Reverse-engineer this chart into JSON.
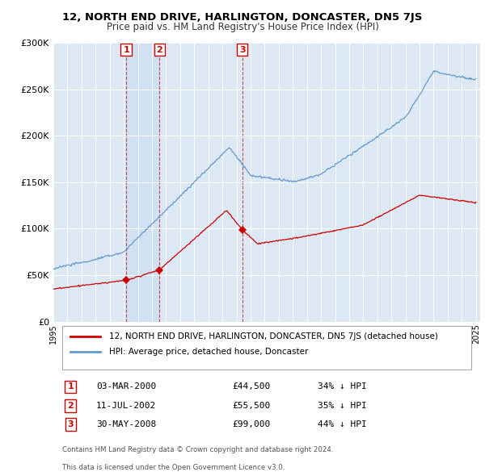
{
  "title": "12, NORTH END DRIVE, HARLINGTON, DONCASTER, DN5 7JS",
  "subtitle": "Price paid vs. HM Land Registry's House Price Index (HPI)",
  "legend_label_red": "12, NORTH END DRIVE, HARLINGTON, DONCASTER, DN5 7JS (detached house)",
  "legend_label_blue": "HPI: Average price, detached house, Doncaster",
  "transactions": [
    {
      "num": 1,
      "date": "03-MAR-2000",
      "price": 44500,
      "year": 2000.17,
      "pct": "34% ↓ HPI"
    },
    {
      "num": 2,
      "date": "11-JUL-2002",
      "price": 55500,
      "year": 2002.53,
      "pct": "35% ↓ HPI"
    },
    {
      "num": 3,
      "date": "30-MAY-2008",
      "price": 99000,
      "year": 2008.41,
      "pct": "44% ↓ HPI"
    }
  ],
  "footer_line1": "Contains HM Land Registry data © Crown copyright and database right 2024.",
  "footer_line2": "This data is licensed under the Open Government Licence v3.0.",
  "ylim": [
    0,
    300000
  ],
  "yticks": [
    0,
    50000,
    100000,
    150000,
    200000,
    250000,
    300000
  ],
  "ytick_labels": [
    "£0",
    "£50K",
    "£100K",
    "£150K",
    "£200K",
    "£250K",
    "£300K"
  ],
  "color_red": "#cc0000",
  "color_blue": "#6699cc",
  "color_vline": "#cc3333",
  "bg_plot": "#dce9f5",
  "bg_fig": "#ffffff",
  "grid_color": "#ffffff"
}
